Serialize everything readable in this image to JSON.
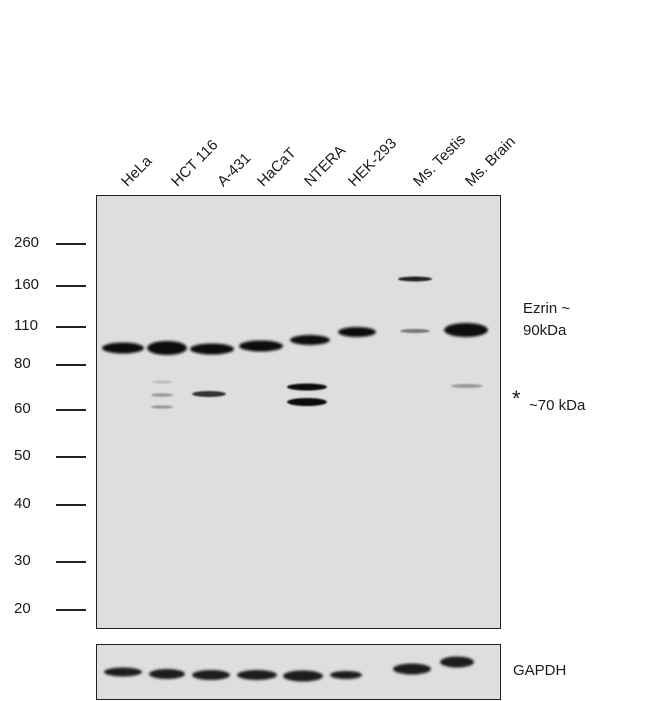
{
  "lanes": [
    "HeLa",
    "HCT 116",
    "A-431",
    "HaCaT",
    "NTERA",
    "HEK-293",
    "Ms. Testis",
    "Ms. Brain"
  ],
  "markers": [
    "260",
    "160",
    "110",
    "80",
    "60",
    "50",
    "40",
    "30",
    "20"
  ],
  "annotations": {
    "ezrin_line1": "Ezrin ~",
    "ezrin_line2": "90kDa",
    "asterisk": "*",
    "band70": "~70 kDa",
    "loading_control": "GAPDH"
  }
}
